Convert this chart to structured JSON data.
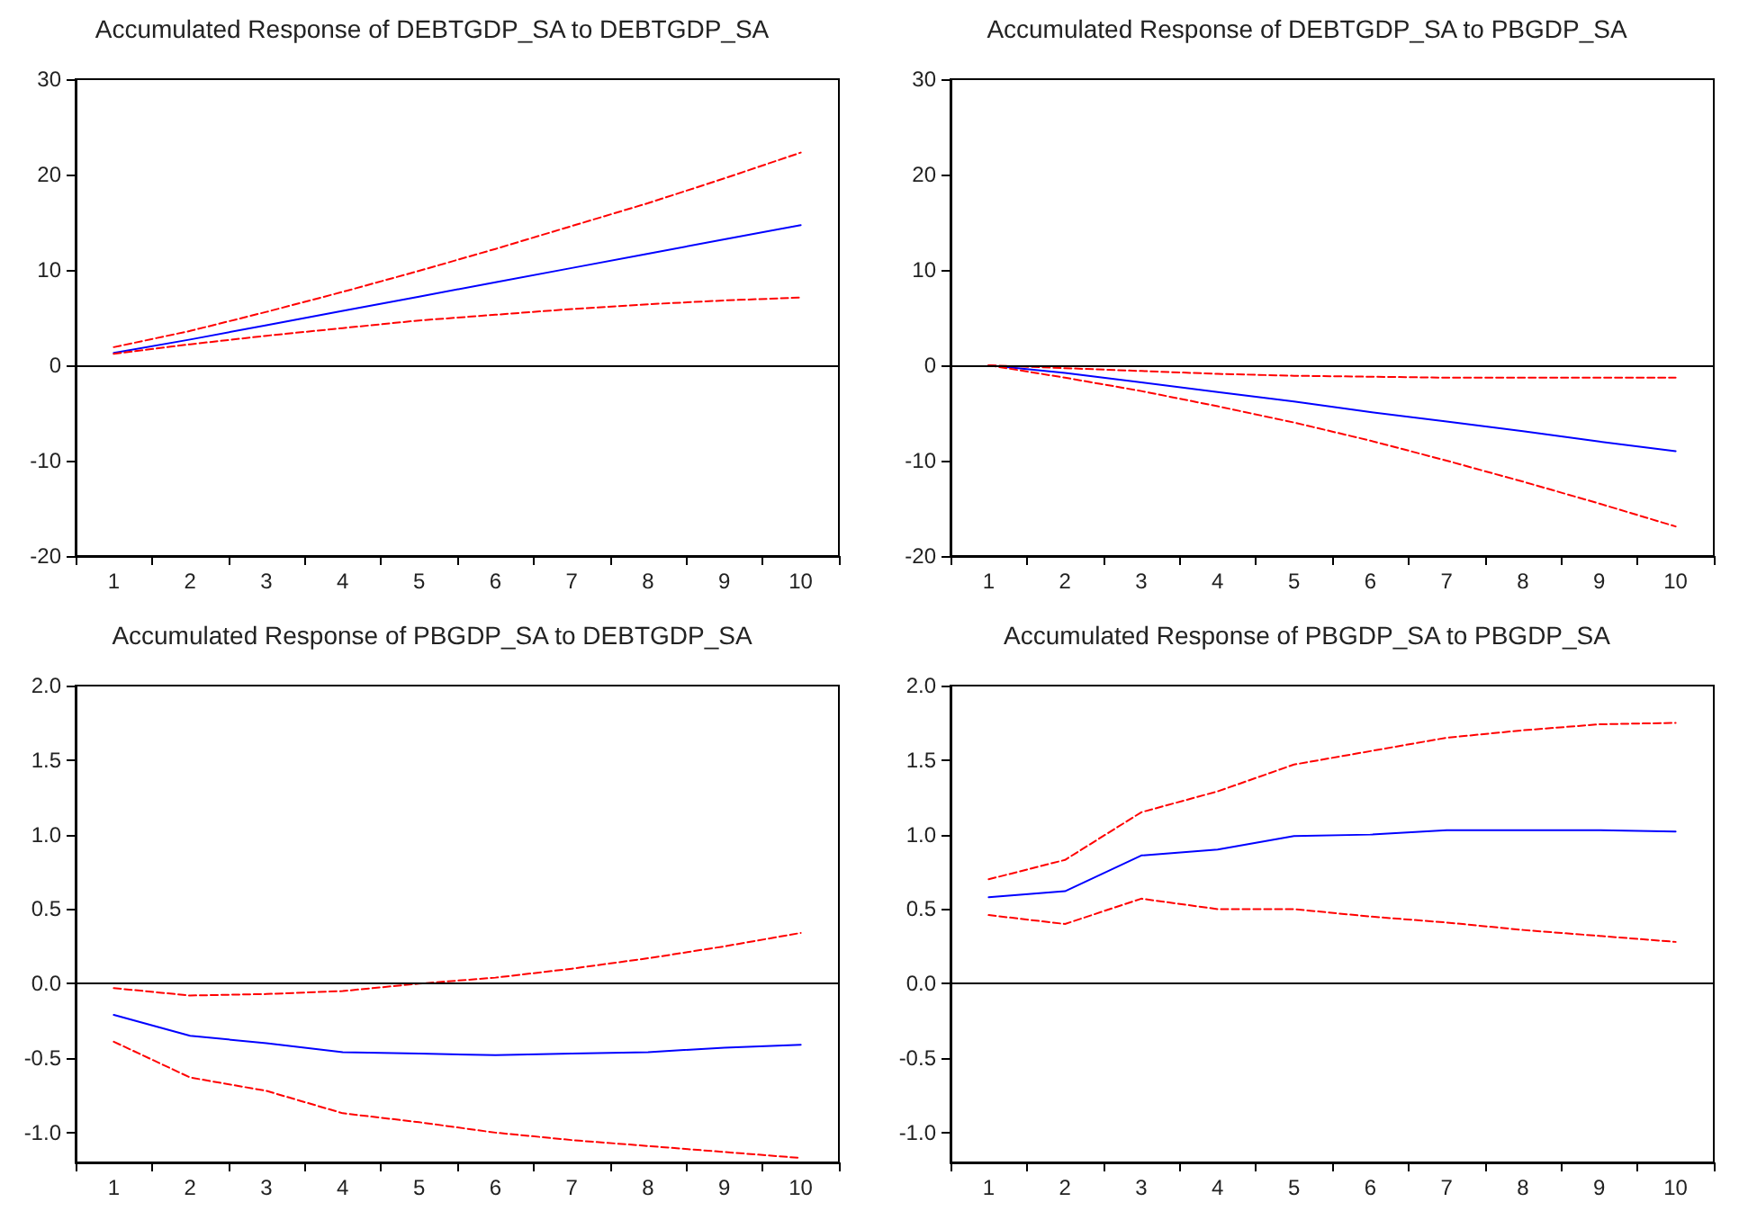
{
  "chart_data": [
    {
      "type": "line",
      "title": "Accumulated Response of DEBTGDP_SA to DEBTGDP_SA",
      "categories": [
        "1",
        "2",
        "3",
        "4",
        "5",
        "6",
        "7",
        "8",
        "9",
        "10"
      ],
      "ylim": [
        -20,
        30
      ],
      "yticks": [
        -20,
        -10,
        0,
        10,
        20,
        30
      ],
      "marker": "none",
      "ref_lines": [
        {
          "axis": "y",
          "value": 0,
          "color": "#000000",
          "line_style": "solid"
        }
      ],
      "series": [
        {
          "color": "#0000ff",
          "line_style": "solid",
          "values": [
            1.3,
            2.7,
            4.2,
            5.7,
            7.2,
            8.7,
            10.2,
            11.7,
            13.2,
            14.7
          ]
        },
        {
          "color": "#ff0000",
          "line_style": "dashed",
          "values": [
            1.9,
            3.6,
            5.6,
            7.7,
            9.9,
            12.2,
            14.6,
            17.0,
            19.6,
            22.3
          ]
        },
        {
          "color": "#ff0000",
          "line_style": "dashed",
          "values": [
            1.2,
            2.2,
            3.1,
            3.9,
            4.7,
            5.3,
            5.9,
            6.4,
            6.8,
            7.1
          ]
        }
      ]
    },
    {
      "type": "line",
      "title": "Accumulated Response of DEBTGDP_SA to PBGDP_SA",
      "categories": [
        "1",
        "2",
        "3",
        "4",
        "5",
        "6",
        "7",
        "8",
        "9",
        "10"
      ],
      "ylim": [
        -20,
        30
      ],
      "yticks": [
        -20,
        -10,
        0,
        10,
        20,
        30
      ],
      "marker": "none",
      "ref_lines": [
        {
          "axis": "y",
          "value": 0,
          "color": "#000000",
          "line_style": "solid"
        }
      ],
      "series": [
        {
          "color": "#0000ff",
          "line_style": "solid",
          "values": [
            0,
            -0.8,
            -1.8,
            -2.8,
            -3.8,
            -4.9,
            -5.9,
            -6.9,
            -8.0,
            -9.0
          ]
        },
        {
          "color": "#ff0000",
          "line_style": "dashed",
          "values": [
            0,
            -0.3,
            -0.6,
            -0.9,
            -1.1,
            -1.2,
            -1.3,
            -1.3,
            -1.3,
            -1.3
          ]
        },
        {
          "color": "#ff0000",
          "line_style": "dashed",
          "values": [
            0,
            -1.3,
            -2.7,
            -4.3,
            -6.0,
            -7.9,
            -10.0,
            -12.2,
            -14.5,
            -16.9
          ]
        }
      ]
    },
    {
      "type": "line",
      "title": "Accumulated Response of PBGDP_SA to DEBTGDP_SA",
      "categories": [
        "1",
        "2",
        "3",
        "4",
        "5",
        "6",
        "7",
        "8",
        "9",
        "10"
      ],
      "ylim": [
        -1.2,
        2.0
      ],
      "yticks": [
        {
          "value": -1,
          "label": "-1.0"
        },
        {
          "value": -0.5,
          "label": "-0.5"
        },
        {
          "value": 0,
          "label": "0.0"
        },
        {
          "value": 0.5,
          "label": "0.5"
        },
        {
          "value": 1,
          "label": "1.0"
        },
        {
          "value": 1.5,
          "label": "1.5"
        },
        {
          "value": 2,
          "label": "2.0"
        }
      ],
      "marker": "none",
      "ref_lines": [
        {
          "axis": "y",
          "value": 0,
          "color": "#000000",
          "line_style": "solid"
        }
      ],
      "series": [
        {
          "color": "#0000ff",
          "line_style": "solid",
          "values": [
            -0.21,
            -0.35,
            -0.4,
            -0.46,
            -0.47,
            -0.48,
            -0.47,
            -0.46,
            -0.43,
            -0.41
          ]
        },
        {
          "color": "#ff0000",
          "line_style": "dashed",
          "values": [
            -0.03,
            -0.08,
            -0.07,
            -0.05,
            0.0,
            0.04,
            0.1,
            0.17,
            0.25,
            0.34
          ]
        },
        {
          "color": "#ff0000",
          "line_style": "dashed",
          "values": [
            -0.39,
            -0.63,
            -0.72,
            -0.87,
            -0.93,
            -1.0,
            -1.05,
            -1.09,
            -1.13,
            -1.17
          ]
        }
      ]
    },
    {
      "type": "line",
      "title": "Accumulated Response of PBGDP_SA to PBGDP_SA",
      "categories": [
        "1",
        "2",
        "3",
        "4",
        "5",
        "6",
        "7",
        "8",
        "9",
        "10"
      ],
      "ylim": [
        -1.2,
        2.0
      ],
      "yticks": [
        {
          "value": -1,
          "label": "-1.0"
        },
        {
          "value": -0.5,
          "label": "-0.5"
        },
        {
          "value": 0,
          "label": "0.0"
        },
        {
          "value": 0.5,
          "label": "0.5"
        },
        {
          "value": 1,
          "label": "1.0"
        },
        {
          "value": 1.5,
          "label": "1.5"
        },
        {
          "value": 2,
          "label": "2.0"
        }
      ],
      "marker": "none",
      "ref_lines": [
        {
          "axis": "y",
          "value": 0,
          "color": "#000000",
          "line_style": "solid"
        }
      ],
      "series": [
        {
          "color": "#0000ff",
          "line_style": "solid",
          "values": [
            0.58,
            0.62,
            0.86,
            0.9,
            0.99,
            1.0,
            1.03,
            1.03,
            1.03,
            1.02
          ]
        },
        {
          "color": "#ff0000",
          "line_style": "dashed",
          "values": [
            0.7,
            0.83,
            1.15,
            1.29,
            1.47,
            1.56,
            1.65,
            1.7,
            1.74,
            1.75
          ]
        },
        {
          "color": "#ff0000",
          "line_style": "dashed",
          "values": [
            0.46,
            0.4,
            0.57,
            0.5,
            0.5,
            0.45,
            0.41,
            0.36,
            0.32,
            0.28
          ]
        }
      ]
    }
  ]
}
